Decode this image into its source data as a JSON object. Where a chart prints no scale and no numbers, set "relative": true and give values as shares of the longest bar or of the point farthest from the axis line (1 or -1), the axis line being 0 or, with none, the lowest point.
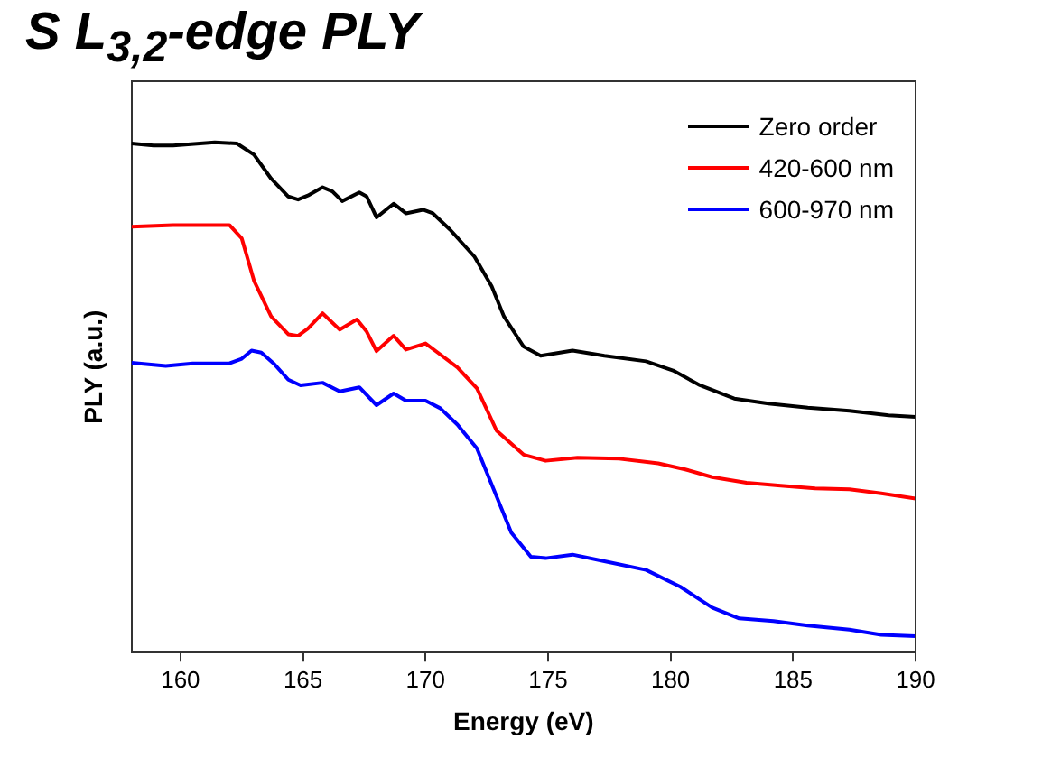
{
  "chart_data": {
    "type": "line",
    "title": "S L$_{3,2}$-edge PLY",
    "xlabel": "Energy (eV)",
    "ylabel": "PLY (a.u.)",
    "relative": true,
    "xlim": [
      158,
      190
    ],
    "xticks": [
      160,
      165,
      170,
      175,
      180,
      185,
      190
    ],
    "grid": false,
    "legend": "top right",
    "marker": "none",
    "line_style": "solid",
    "series": [
      {
        "name": "Zero order",
        "color": "#000000",
        "x": [
          158.0,
          158.9,
          159.7,
          161.4,
          162.3,
          163.0,
          163.7,
          164.4,
          164.8,
          165.2,
          165.8,
          166.2,
          166.6,
          167.3,
          167.6,
          168.0,
          168.7,
          169.2,
          169.9,
          170.3,
          171.0,
          172.0,
          172.7,
          173.2,
          174.0,
          174.7,
          176.0,
          177.3,
          179.0,
          180.1,
          181.2,
          182.6,
          184.0,
          185.6,
          187.3,
          188.9,
          190.0
        ],
        "values": [
          0.998,
          0.994,
          0.994,
          1.0,
          0.998,
          0.976,
          0.929,
          0.894,
          0.888,
          0.896,
          0.912,
          0.904,
          0.885,
          0.902,
          0.894,
          0.853,
          0.88,
          0.861,
          0.868,
          0.861,
          0.829,
          0.776,
          0.718,
          0.659,
          0.6,
          0.582,
          0.592,
          0.582,
          0.571,
          0.553,
          0.524,
          0.498,
          0.488,
          0.48,
          0.474,
          0.465,
          0.462
        ]
      },
      {
        "name": "420-600 nm",
        "color": "#ff0000",
        "x": [
          158.0,
          159.7,
          162.0,
          162.5,
          163.0,
          163.7,
          164.4,
          164.8,
          165.2,
          165.8,
          166.5,
          167.2,
          167.6,
          168.0,
          168.7,
          169.2,
          170.0,
          170.5,
          171.3,
          172.1,
          172.9,
          174.0,
          174.9,
          176.2,
          177.9,
          179.5,
          180.6,
          181.7,
          183.1,
          184.5,
          185.9,
          187.3,
          188.6,
          190.0
        ],
        "values": [
          0.835,
          0.838,
          0.838,
          0.812,
          0.729,
          0.659,
          0.624,
          0.621,
          0.635,
          0.665,
          0.633,
          0.653,
          0.629,
          0.591,
          0.621,
          0.594,
          0.606,
          0.588,
          0.559,
          0.518,
          0.435,
          0.388,
          0.376,
          0.382,
          0.38,
          0.371,
          0.359,
          0.344,
          0.333,
          0.327,
          0.322,
          0.32,
          0.312,
          0.302
        ]
      },
      {
        "name": "600-970 nm",
        "color": "#0000ff",
        "x": [
          158.0,
          159.4,
          160.5,
          162.0,
          162.5,
          162.9,
          163.3,
          163.8,
          164.4,
          164.9,
          165.8,
          166.5,
          167.3,
          168.0,
          168.7,
          169.2,
          170.0,
          170.6,
          171.3,
          172.1,
          172.8,
          173.5,
          174.3,
          174.9,
          176.0,
          177.3,
          179.0,
          180.4,
          181.7,
          182.8,
          184.2,
          185.6,
          187.3,
          188.6,
          190.0
        ],
        "values": [
          0.568,
          0.562,
          0.567,
          0.567,
          0.576,
          0.592,
          0.588,
          0.567,
          0.535,
          0.524,
          0.529,
          0.512,
          0.52,
          0.485,
          0.508,
          0.494,
          0.494,
          0.479,
          0.447,
          0.4,
          0.318,
          0.235,
          0.188,
          0.185,
          0.192,
          0.179,
          0.162,
          0.129,
          0.088,
          0.067,
          0.062,
          0.053,
          0.045,
          0.035,
          0.032
        ]
      }
    ]
  }
}
